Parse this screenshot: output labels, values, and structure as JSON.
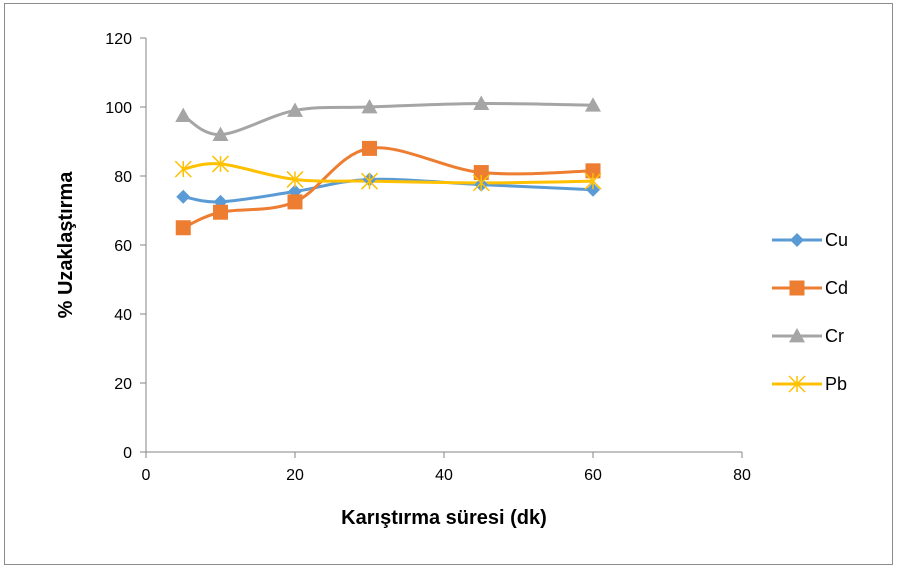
{
  "chart_data": {
    "type": "line",
    "title": "",
    "xlabel": "Karıştırma süresi (dk)",
    "ylabel": "% Uzaklaştırma",
    "xlim": [
      0,
      80
    ],
    "ylim": [
      0,
      120
    ],
    "xticks": [
      0,
      20,
      40,
      60,
      80
    ],
    "yticks": [
      0,
      20,
      40,
      60,
      80,
      100,
      120
    ],
    "grid": false,
    "legend_position": "right",
    "smooth": true,
    "series": [
      {
        "name": "Cu",
        "color": "#5b9bd5",
        "marker": "diamond",
        "points": [
          [
            5,
            74
          ],
          [
            10,
            72.5
          ],
          [
            20,
            75.5
          ],
          [
            30,
            79
          ],
          [
            45,
            77.5
          ],
          [
            60,
            76
          ]
        ]
      },
      {
        "name": "Cd",
        "color": "#ed7d31",
        "marker": "square",
        "points": [
          [
            5,
            65
          ],
          [
            10,
            69.5
          ],
          [
            20,
            72.5
          ],
          [
            30,
            88
          ],
          [
            45,
            81
          ],
          [
            60,
            81.5
          ]
        ]
      },
      {
        "name": "Cr",
        "color": "#a5a5a5",
        "marker": "triangle",
        "points": [
          [
            5,
            97.5
          ],
          [
            10,
            92
          ],
          [
            20,
            99
          ],
          [
            30,
            100
          ],
          [
            45,
            101
          ],
          [
            60,
            100.5
          ]
        ]
      },
      {
        "name": "Pb",
        "color": "#ffc000",
        "marker": "asterisk",
        "points": [
          [
            5,
            82
          ],
          [
            10,
            83.5
          ],
          [
            20,
            79
          ],
          [
            30,
            78.5
          ],
          [
            45,
            78
          ],
          [
            60,
            78.5
          ]
        ]
      }
    ]
  }
}
